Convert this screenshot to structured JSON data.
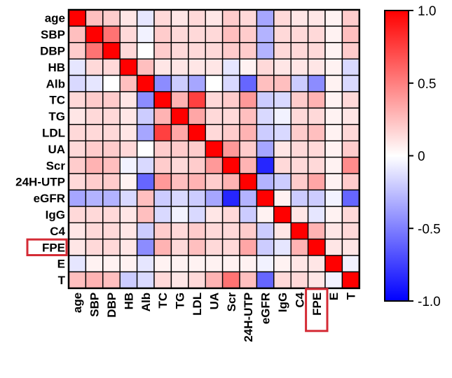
{
  "chart_data": {
    "type": "heatmap",
    "title": "",
    "labels": [
      "age",
      "SBP",
      "DBP",
      "HB",
      "Alb",
      "TC",
      "TG",
      "LDL",
      "UA",
      "Scr",
      "24H-UTP",
      "eGFR",
      "IgG",
      "C4",
      "FPE",
      "E",
      "T"
    ],
    "highlighted": [
      "FPE"
    ],
    "zlim": [
      -1.0,
      1.0
    ],
    "colorbar": {
      "ticks": [
        "1.0",
        "0.5",
        "0",
        "-0.5",
        "-1.0"
      ],
      "tick_values": [
        1.0,
        0.5,
        0,
        -0.5,
        -1.0
      ],
      "colors": {
        "negative": "#0000ff",
        "zero": "#ffffff",
        "positive": "#ff0000"
      }
    },
    "matrix": [
      [
        1.0,
        0.25,
        0.2,
        0.1,
        -0.1,
        0.15,
        0.1,
        0.15,
        0.1,
        0.2,
        0.15,
        -0.35,
        0.15,
        0.1,
        0.1,
        0.05,
        0.2
      ],
      [
        0.25,
        1.0,
        0.55,
        0.15,
        -0.05,
        0.2,
        0.15,
        0.15,
        0.15,
        0.25,
        0.2,
        -0.3,
        0.15,
        0.15,
        0.15,
        0.05,
        0.25
      ],
      [
        0.2,
        0.55,
        1.0,
        0.15,
        0.0,
        0.2,
        0.15,
        0.15,
        0.15,
        0.2,
        0.2,
        -0.3,
        0.15,
        0.15,
        0.15,
        0.05,
        0.2
      ],
      [
        -0.1,
        0.15,
        0.15,
        1.0,
        0.25,
        0.1,
        0.1,
        0.1,
        0.1,
        -0.1,
        0.05,
        0.15,
        0.1,
        0.1,
        0.1,
        0.05,
        -0.15
      ],
      [
        -0.15,
        -0.1,
        0.0,
        0.25,
        1.0,
        -0.45,
        -0.2,
        -0.35,
        0.0,
        -0.15,
        -0.6,
        0.25,
        0.25,
        -0.2,
        -0.45,
        0.05,
        -0.15
      ],
      [
        0.15,
        0.2,
        0.2,
        0.1,
        -0.45,
        1.0,
        0.3,
        0.75,
        0.15,
        0.2,
        0.4,
        -0.2,
        -0.15,
        0.2,
        0.3,
        0.05,
        0.15
      ],
      [
        0.1,
        0.15,
        0.15,
        0.1,
        -0.2,
        0.3,
        1.0,
        0.35,
        0.15,
        0.15,
        0.25,
        -0.15,
        -0.05,
        0.15,
        0.15,
        0.05,
        0.1
      ],
      [
        0.15,
        0.15,
        0.15,
        0.1,
        -0.35,
        0.75,
        0.35,
        1.0,
        0.15,
        0.2,
        0.3,
        -0.2,
        -0.15,
        0.2,
        0.25,
        0.05,
        0.15
      ],
      [
        0.15,
        0.2,
        0.2,
        0.15,
        0.0,
        0.2,
        0.2,
        0.2,
        1.0,
        0.4,
        0.2,
        -0.35,
        0.1,
        0.15,
        0.15,
        0.05,
        0.2
      ],
      [
        0.2,
        0.3,
        0.25,
        -0.05,
        -0.15,
        0.2,
        0.15,
        0.2,
        0.4,
        1.0,
        0.3,
        -0.85,
        0.15,
        0.15,
        0.15,
        0.05,
        0.45
      ],
      [
        0.15,
        0.2,
        0.2,
        0.05,
        -0.6,
        0.4,
        0.25,
        0.3,
        0.2,
        0.3,
        1.0,
        -0.3,
        -0.2,
        0.2,
        0.35,
        0.05,
        0.2
      ],
      [
        -0.35,
        -0.3,
        -0.3,
        -0.15,
        0.25,
        -0.2,
        -0.15,
        -0.2,
        -0.35,
        -0.85,
        -0.3,
        1.0,
        0.05,
        -0.2,
        -0.2,
        -0.05,
        -0.6
      ],
      [
        0.15,
        0.15,
        0.15,
        0.1,
        0.25,
        -0.15,
        -0.05,
        -0.15,
        0.1,
        0.15,
        -0.2,
        0.05,
        1.0,
        0.1,
        -0.1,
        0.05,
        0.15
      ],
      [
        0.1,
        0.15,
        0.15,
        0.1,
        -0.2,
        0.2,
        0.15,
        0.2,
        0.15,
        0.15,
        0.2,
        -0.2,
        0.1,
        1.0,
        0.3,
        0.1,
        0.15
      ],
      [
        0.1,
        0.15,
        0.15,
        0.1,
        -0.45,
        0.3,
        0.15,
        0.25,
        0.15,
        0.15,
        0.35,
        -0.2,
        -0.1,
        0.3,
        1.0,
        0.1,
        0.1
      ],
      [
        -0.1,
        0.05,
        0.05,
        0.05,
        -0.1,
        0.05,
        0.05,
        0.05,
        0.05,
        0.05,
        0.05,
        -0.05,
        0.05,
        0.1,
        0.1,
        1.0,
        -0.05
      ],
      [
        0.25,
        0.3,
        0.25,
        -0.2,
        -0.15,
        0.15,
        0.1,
        0.15,
        0.3,
        0.55,
        0.25,
        -0.6,
        0.15,
        0.15,
        0.1,
        -0.05,
        1.0
      ]
    ]
  }
}
